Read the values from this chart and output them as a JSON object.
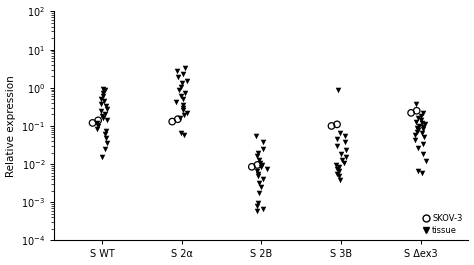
{
  "ylabel": "Relative expression",
  "categories": [
    "S WT",
    "S 2α",
    "S 2B",
    "S 3B",
    "S Δex3"
  ],
  "ylim": [
    0.0001,
    100.0
  ],
  "background_color": "#ffffff",
  "tissue_color": "#000000",
  "skov3_color": "#000000",
  "skov3_data": {
    "S WT": [
      0.12,
      0.14
    ],
    "S 2α": [
      0.13,
      0.15
    ],
    "S 2B": [
      0.0085,
      0.0095
    ],
    "S 3B": [
      0.1,
      0.11
    ],
    "S Δex3": [
      0.22,
      0.25
    ]
  },
  "tissue_data": {
    "S WT": [
      0.95,
      0.85,
      0.72,
      0.62,
      0.52,
      0.44,
      0.38,
      0.33,
      0.28,
      0.24,
      0.21,
      0.18,
      0.16,
      0.14,
      0.12,
      0.1,
      0.085,
      0.072,
      0.06,
      0.048,
      0.036,
      0.025,
      0.015
    ],
    "S 2α": [
      3.2,
      2.8,
      2.3,
      1.9,
      1.55,
      1.3,
      1.05,
      0.88,
      0.72,
      0.6,
      0.5,
      0.42,
      0.35,
      0.3,
      0.26,
      0.22,
      0.19,
      0.16,
      0.065,
      0.058
    ],
    "S 2B": [
      0.055,
      0.038,
      0.025,
      0.02,
      0.016,
      0.013,
      0.011,
      0.0095,
      0.0085,
      0.0075,
      0.0065,
      0.0055,
      0.0048,
      0.004,
      0.0032,
      0.0025,
      0.0018,
      0.00095,
      0.00078,
      0.00065,
      0.00058
    ],
    "S 3B": [
      0.85,
      0.065,
      0.055,
      0.046,
      0.038,
      0.03,
      0.023,
      0.018,
      0.015,
      0.013,
      0.011,
      0.0095,
      0.0085,
      0.0075,
      0.0065,
      0.0055,
      0.0048,
      0.0038
    ],
    "S Δex3": [
      0.38,
      0.22,
      0.18,
      0.16,
      0.14,
      0.13,
      0.12,
      0.11,
      0.1,
      0.095,
      0.088,
      0.082,
      0.076,
      0.07,
      0.064,
      0.058,
      0.05,
      0.042,
      0.034,
      0.026,
      0.018,
      0.012,
      0.0065,
      0.0058
    ]
  }
}
